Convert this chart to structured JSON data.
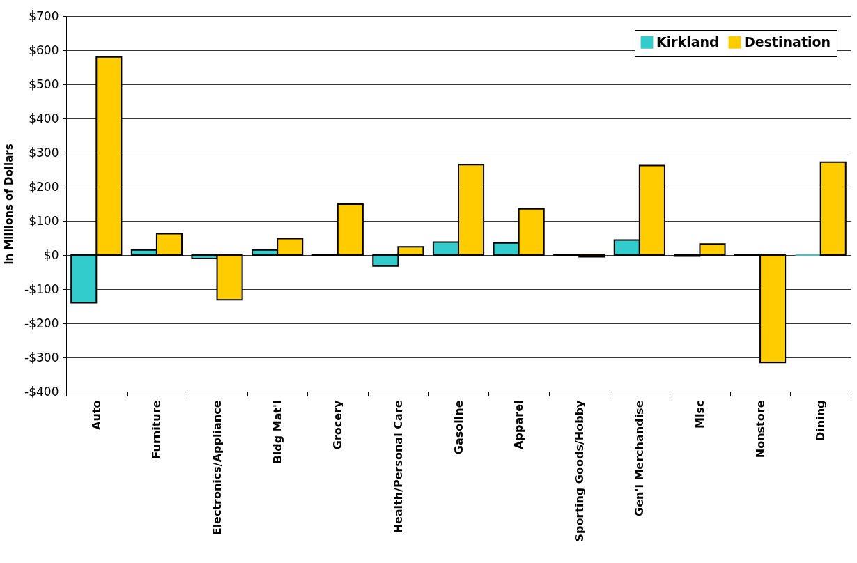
{
  "chart_data": {
    "type": "bar",
    "ylabel": "in Millions of Dollars",
    "categories": [
      "Auto",
      "Furniture",
      "Electronics/Appliance",
      "Bldg Mat'l",
      "Grocery",
      "Health/Personal Care",
      "Gasoline",
      "Apparel",
      "Sporting Goods/Hobby",
      "Gen'l Merchandise",
      "Misc",
      "Nonstore",
      "Dining"
    ],
    "series": [
      {
        "name": "Kirkland",
        "color": "#33cccc",
        "values": [
          -140,
          15,
          -10,
          15,
          -2,
          -32,
          38,
          35,
          -2,
          44,
          -3,
          2,
          0
        ]
      },
      {
        "name": "Destination",
        "color": "#ffcc00",
        "values": [
          580,
          62,
          -131,
          48,
          149,
          24,
          265,
          135,
          -5,
          262,
          32,
          -315,
          272
        ]
      }
    ],
    "ylim": [
      -400,
      700
    ],
    "yticks": [
      {
        "value": -400,
        "label": "-$400"
      },
      {
        "value": -300,
        "label": "-$300"
      },
      {
        "value": -200,
        "label": "-$200"
      },
      {
        "value": -100,
        "label": "-$100"
      },
      {
        "value": 0,
        "label": "$0"
      },
      {
        "value": 100,
        "label": "$100"
      },
      {
        "value": 200,
        "label": "$200"
      },
      {
        "value": 300,
        "label": "$300"
      },
      {
        "value": 400,
        "label": "$400"
      },
      {
        "value": 500,
        "label": "$500"
      },
      {
        "value": 600,
        "label": "$600"
      },
      {
        "value": 700,
        "label": "$700"
      }
    ],
    "grid": true,
    "legend": "top right"
  }
}
